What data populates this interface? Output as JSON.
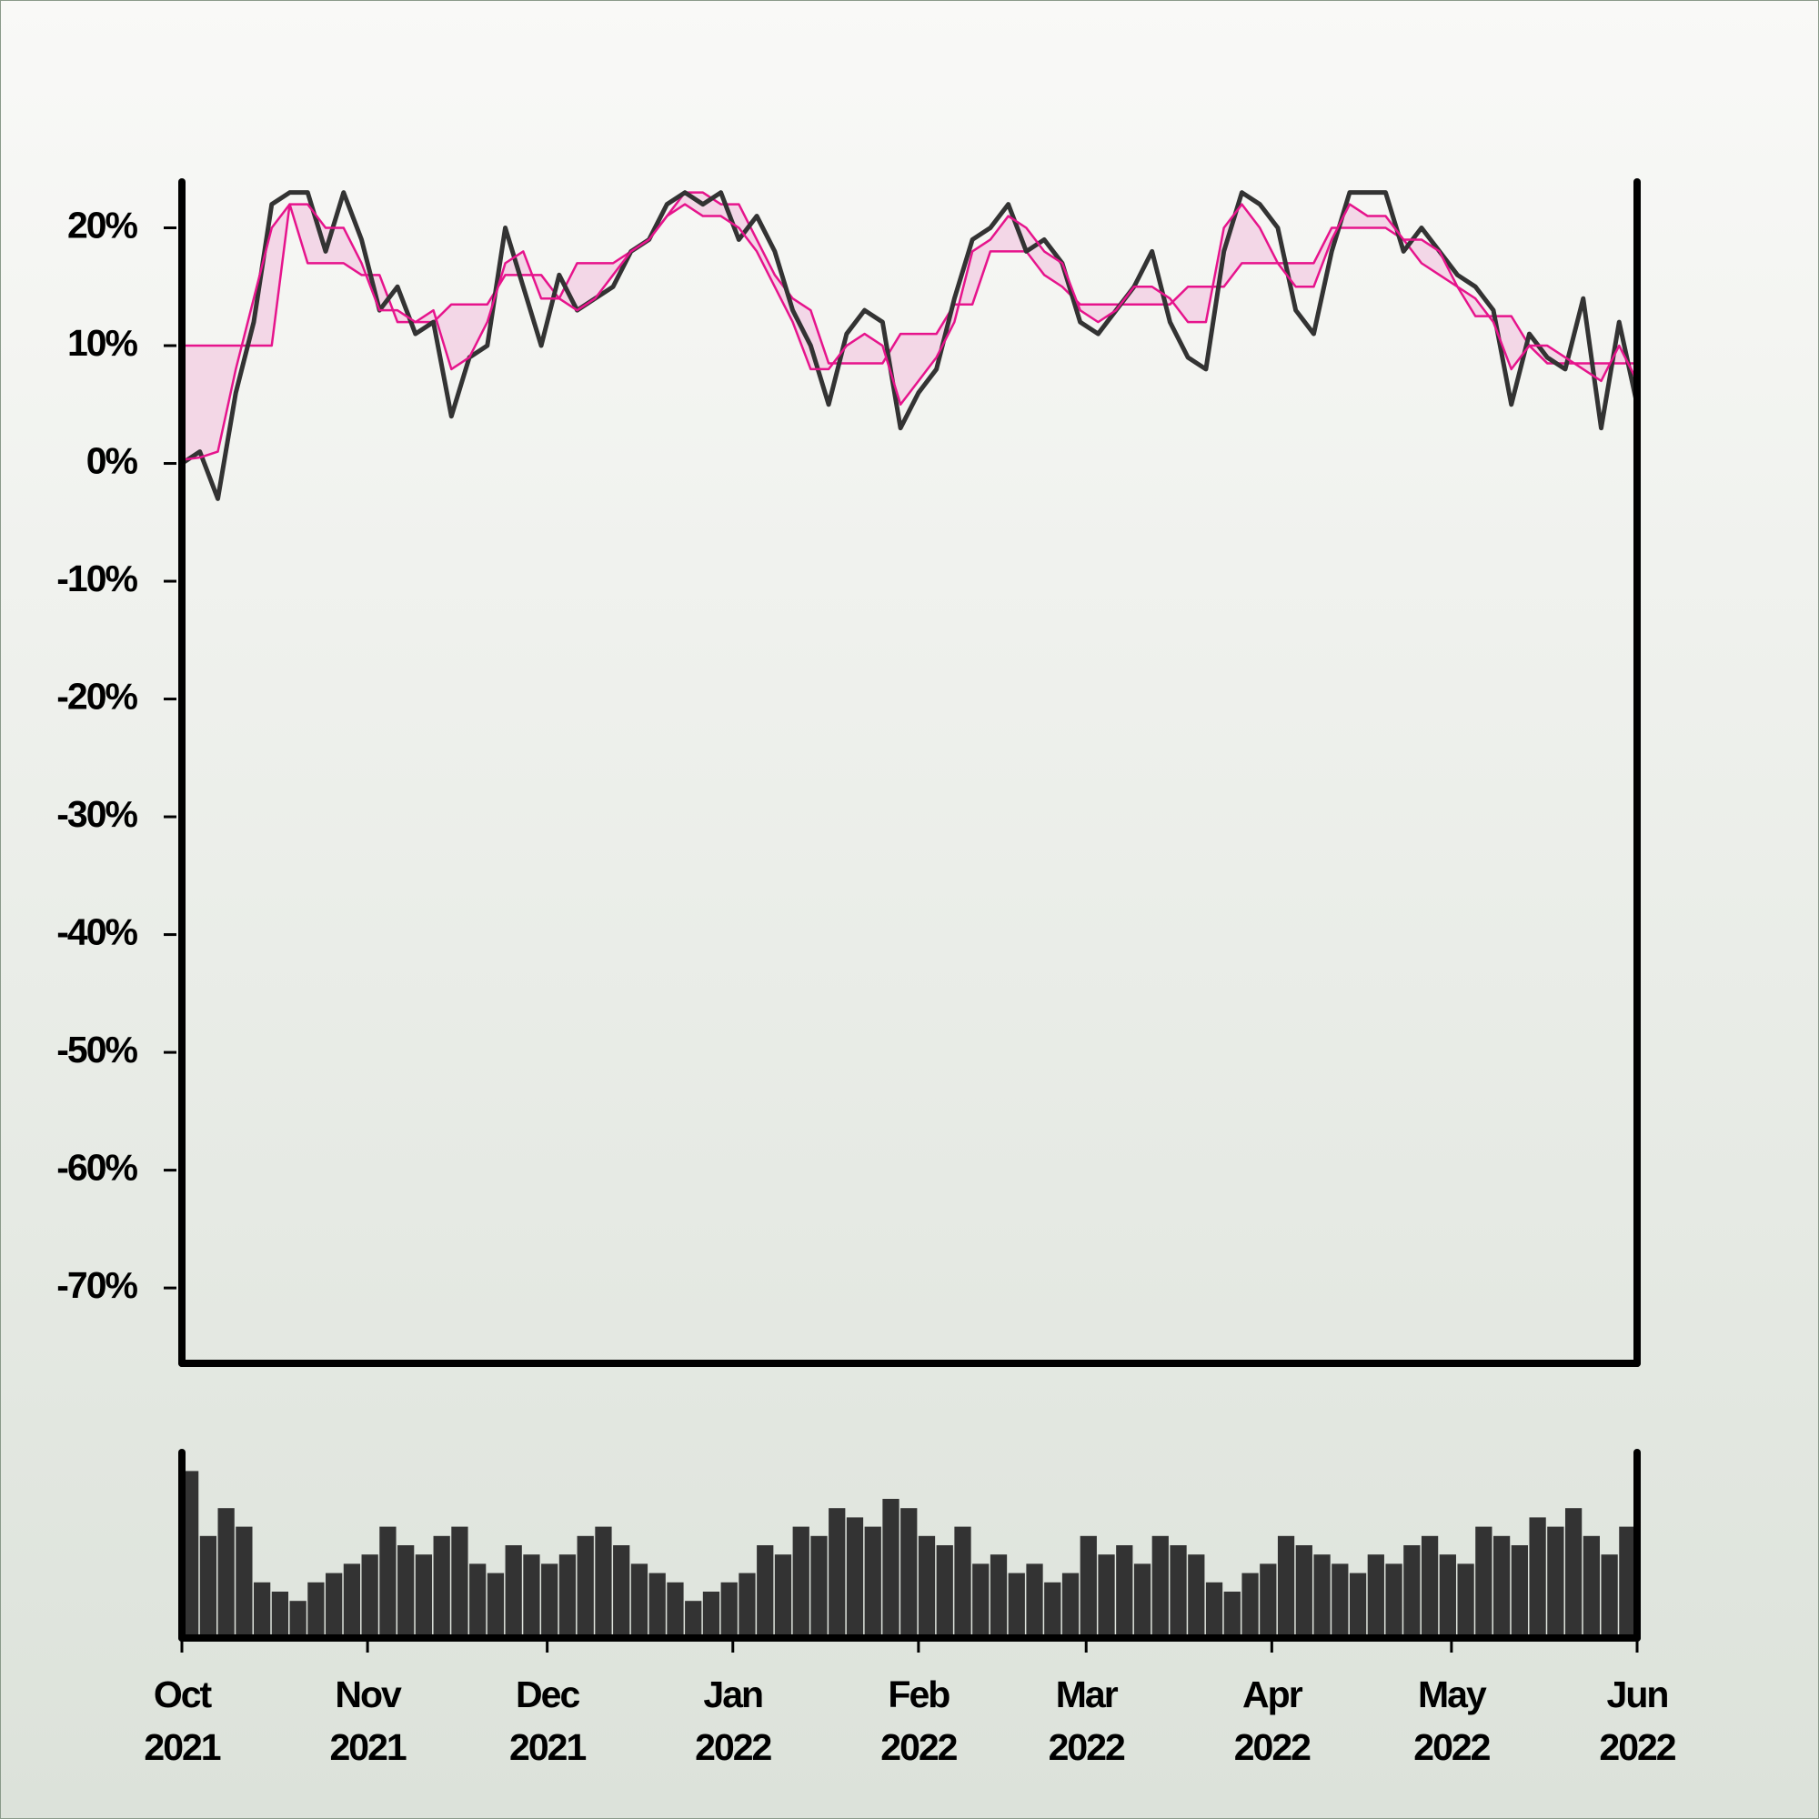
{
  "chart_data": {
    "type": "line",
    "x": [
      0,
      3,
      6,
      9,
      12,
      15,
      18,
      21,
      24,
      27,
      30,
      33,
      36,
      39,
      42,
      45,
      48,
      51,
      54,
      57,
      60,
      63,
      66,
      69,
      72,
      75,
      78,
      81,
      84,
      87,
      90,
      93,
      96,
      99,
      102,
      105,
      108,
      111,
      114,
      117,
      120,
      123,
      126,
      129,
      132,
      135,
      138,
      141,
      144,
      147,
      150,
      153,
      156,
      159,
      162,
      165,
      168,
      171,
      174,
      177,
      180,
      183,
      186,
      189,
      192,
      195,
      198,
      201,
      204,
      207,
      210,
      213,
      216,
      219,
      222,
      225,
      228,
      231,
      234,
      237,
      240,
      243
    ],
    "xlim": [
      0,
      243
    ],
    "xticks": [
      {
        "value": 0,
        "label": "Oct 2021"
      },
      {
        "value": 31,
        "label": "Nov 2021"
      },
      {
        "value": 61,
        "label": "Dec 2021"
      },
      {
        "value": 92,
        "label": "Jan 2022"
      },
      {
        "value": 123,
        "label": "Feb 2022"
      },
      {
        "value": 151,
        "label": "Mar 2022"
      },
      {
        "value": 182,
        "label": "Apr 2022"
      },
      {
        "value": 212,
        "label": "May 2022"
      },
      {
        "value": 243,
        "label": "Jun 2022"
      }
    ],
    "ylim": [
      -76.4,
      23.9
    ],
    "yticks": [
      {
        "value": 20,
        "label": "20%"
      },
      {
        "value": 10,
        "label": "10%"
      },
      {
        "value": 0,
        "label": "0%"
      },
      {
        "value": -10,
        "label": "-10%"
      },
      {
        "value": -20,
        "label": "-20%"
      },
      {
        "value": -30,
        "label": "-30%"
      },
      {
        "value": -40,
        "label": "-40%"
      },
      {
        "value": -50,
        "label": "-50%"
      },
      {
        "value": -60,
        "label": "-60%"
      },
      {
        "value": -70,
        "label": "-70%"
      }
    ],
    "band_color": "#f3cfe3",
    "series": [
      {
        "color": "#333333",
        "values": [
          0,
          1,
          -3,
          6,
          12,
          22,
          23,
          23,
          18,
          23,
          19,
          13,
          15,
          11,
          12,
          4,
          9,
          10,
          20,
          15,
          10,
          16,
          13,
          14,
          15,
          18,
          19,
          22,
          23,
          22,
          23,
          19,
          21,
          18,
          13,
          10,
          5,
          11,
          13,
          12,
          3,
          6,
          8,
          14,
          19,
          20,
          22,
          18,
          19,
          17,
          12,
          11,
          13,
          15,
          18,
          12,
          9,
          8,
          18,
          23,
          22,
          20,
          13,
          11,
          18,
          23,
          23,
          23,
          18,
          20,
          18,
          16,
          15,
          13,
          5,
          11,
          9,
          8,
          14,
          3,
          12,
          5
        ]
      },
      {
        "color": "#e6148c",
        "values": [
          0.3,
          0.5,
          1,
          8,
          14,
          20,
          22,
          22,
          20,
          20,
          17,
          13,
          13,
          12,
          13,
          8,
          9,
          12,
          17,
          18,
          14,
          14,
          13,
          14,
          16,
          18,
          19,
          21,
          22,
          21,
          21,
          20,
          18,
          15,
          12,
          8,
          8,
          10,
          11,
          10,
          5,
          7,
          9,
          12,
          18,
          19,
          21,
          20,
          18,
          17,
          13,
          12,
          13,
          15,
          15,
          14,
          12,
          12,
          20,
          22,
          20,
          17,
          15,
          15,
          19,
          22,
          21,
          21,
          19,
          19,
          18,
          15,
          14,
          12,
          8,
          10,
          10,
          9,
          8,
          7,
          10,
          7
        ]
      },
      {
        "color": "#e6148c",
        "values": [
          10,
          10,
          10,
          10,
          10,
          10,
          22,
          17,
          17,
          17,
          16,
          16,
          12,
          12,
          12,
          13.5,
          13.5,
          13.5,
          16,
          16,
          16,
          14,
          17,
          17,
          17,
          18,
          19,
          21,
          23,
          23,
          22,
          22,
          19,
          16,
          14,
          13,
          8.5,
          8.5,
          8.5,
          8.5,
          11,
          11,
          11,
          13.5,
          13.5,
          18,
          18,
          18,
          16,
          15,
          13.5,
          13.5,
          13.5,
          13.5,
          13.5,
          13.5,
          15,
          15,
          15,
          17,
          17,
          17,
          17,
          17,
          20,
          20,
          20,
          20,
          19,
          17,
          16,
          15,
          12.5,
          12.5,
          12.5,
          10,
          8.5,
          8.5,
          8.5,
          8.5,
          8.5,
          8.5
        ]
      }
    ],
    "volume": {
      "color": "#333333",
      "ylim": [
        0,
        100
      ],
      "values": [
        90,
        55,
        70,
        60,
        30,
        25,
        20,
        30,
        35,
        40,
        45,
        60,
        50,
        45,
        55,
        60,
        40,
        35,
        50,
        45,
        40,
        45,
        55,
        60,
        50,
        40,
        35,
        30,
        20,
        25,
        30,
        35,
        50,
        45,
        60,
        55,
        70,
        65,
        60,
        75,
        70,
        55,
        50,
        60,
        40,
        45,
        35,
        40,
        30,
        35,
        55,
        45,
        50,
        40,
        55,
        50,
        45,
        30,
        25,
        35,
        40,
        55,
        50,
        45,
        40,
        35,
        45,
        40,
        50,
        55,
        45,
        40,
        60,
        55,
        50,
        65,
        60,
        70,
        55,
        45,
        60,
        40
      ]
    }
  }
}
